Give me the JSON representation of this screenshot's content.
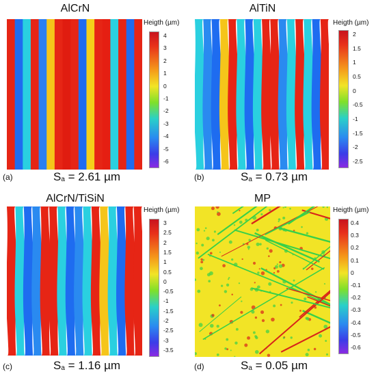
{
  "colorbar_title": "Heigth (µm)",
  "sa_symbol": "S",
  "sa_subscript": "a",
  "panels": [
    {
      "label": "(a)",
      "title": "AlCrN",
      "sa_value": "= 2.61 µm",
      "ticks": [
        "4",
        "3",
        "2",
        "1",
        "0",
        "-1",
        "-2",
        "-3",
        "-4",
        "-5",
        "-6"
      ],
      "stripe_colors": [
        "#e62515",
        "#1e6cf0",
        "#2ad0e0",
        "#e62515",
        "#2b7ff2",
        "#f5c51a",
        "#e62515",
        "#e01c10",
        "#e62515",
        "#1e6cf0",
        "#f5d01a",
        "#e62515",
        "#e51f12",
        "#2ad0e0",
        "#e62515",
        "#1e6cf0",
        "#e62515"
      ]
    },
    {
      "label": "(b)",
      "title": "AlTiN",
      "sa_value": "= 0.73 µm",
      "ticks": [
        "2",
        "1.5",
        "1",
        "0.5",
        "0",
        "-0.5",
        "-1",
        "-1.5",
        "-2",
        "-2.5"
      ],
      "stripe_colors": [
        "#2ad0e0",
        "#2a8af0",
        "#1e6cf0",
        "#f5c51a",
        "#e62515",
        "#2ad0e0",
        "#1e6cf0",
        "#2ad0e0",
        "#e62515",
        "#e62515",
        "#2a8af0",
        "#2ad0e0",
        "#e62515",
        "#2ad0e0",
        "#1e6cf0",
        "#e62515"
      ]
    },
    {
      "label": "(c)",
      "title": "AlCrN/TiSiN",
      "sa_value": "= 1.16 µm",
      "ticks": [
        "3",
        "2.5",
        "2",
        "1.5",
        "1",
        "0.5",
        "0",
        "-0.5",
        "-1",
        "-1.5",
        "-2",
        "-2.5",
        "-3",
        "-3.5"
      ],
      "stripe_colors": [
        "#e62515",
        "#2ad0e0",
        "#1e6cf0",
        "#2a8af0",
        "#e62515",
        "#e62515",
        "#2ad0e0",
        "#1e6cf0",
        "#2a8af0",
        "#2ad0e0",
        "#e62515",
        "#f5c51a",
        "#2ad0e0",
        "#1e6cf0",
        "#e62515",
        "#e62515"
      ]
    },
    {
      "label": "(d)",
      "title": "MP",
      "sa_value": "= 0.05 µm",
      "ticks": [
        "0.4",
        "0.3",
        "0.2",
        "0.1",
        "0",
        "-0.1",
        "-0.2",
        "-0.3",
        "-0.4",
        "-0.5",
        "-0.6"
      ],
      "base_color": "#f2e426",
      "scratch_colors": [
        "#d8241a",
        "#38d049"
      ]
    }
  ]
}
